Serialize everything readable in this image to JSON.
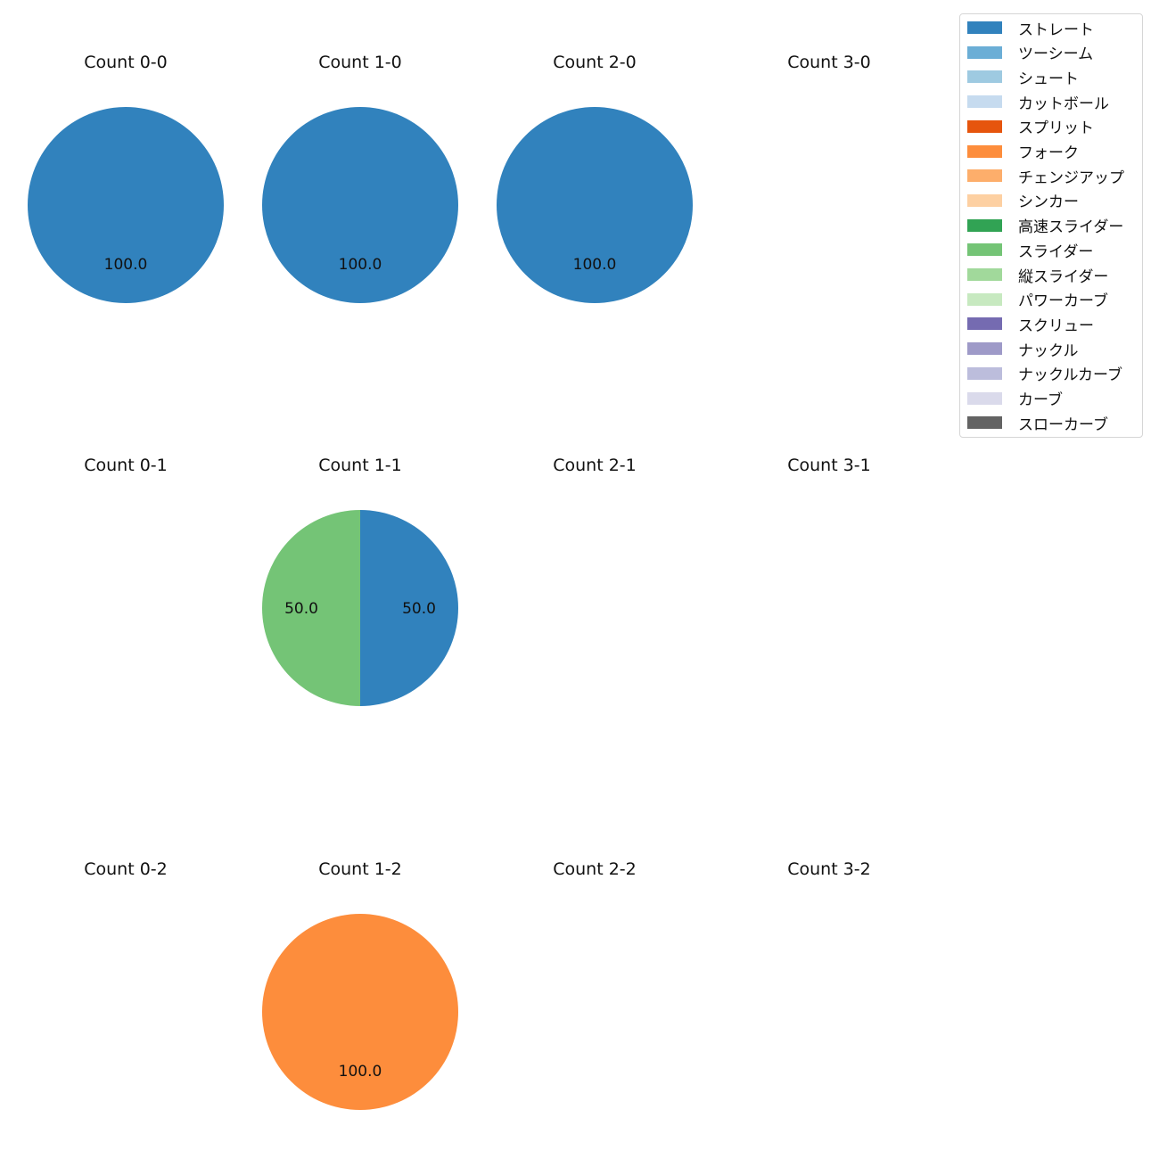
{
  "chart_data": {
    "type": "pie",
    "legend": {
      "placement": "top-right",
      "entries": [
        {
          "label": "ストレート",
          "color": "#3182bd"
        },
        {
          "label": "ツーシーム",
          "color": "#6baed6"
        },
        {
          "label": "シュート",
          "color": "#9ecae1"
        },
        {
          "label": "カットボール",
          "color": "#c6dbef"
        },
        {
          "label": "スプリット",
          "color": "#e6550d"
        },
        {
          "label": "フォーク",
          "color": "#fd8d3c"
        },
        {
          "label": "チェンジアップ",
          "color": "#fdae6b"
        },
        {
          "label": "シンカー",
          "color": "#fdd0a2"
        },
        {
          "label": "高速スライダー",
          "color": "#31a354"
        },
        {
          "label": "スライダー",
          "color": "#74c476"
        },
        {
          "label": "縦スライダー",
          "color": "#a1d99b"
        },
        {
          "label": "パワーカーブ",
          "color": "#c7e9c0"
        },
        {
          "label": "スクリュー",
          "color": "#756bb1"
        },
        {
          "label": "ナックル",
          "color": "#9e9ac8"
        },
        {
          "label": "ナックルカーブ",
          "color": "#bcbddc"
        },
        {
          "label": "カーブ",
          "color": "#dadaeb"
        },
        {
          "label": "スローカーブ",
          "color": "#636363"
        }
      ]
    },
    "subplots": [
      {
        "title": "Count 0-0",
        "slices": [
          {
            "pitch": "ストレート",
            "value": 100.0,
            "label": "100.0"
          }
        ]
      },
      {
        "title": "Count 1-0",
        "slices": [
          {
            "pitch": "ストレート",
            "value": 100.0,
            "label": "100.0"
          }
        ]
      },
      {
        "title": "Count 2-0",
        "slices": [
          {
            "pitch": "ストレート",
            "value": 100.0,
            "label": "100.0"
          }
        ]
      },
      {
        "title": "Count 3-0",
        "slices": []
      },
      {
        "title": "Count 0-1",
        "slices": []
      },
      {
        "title": "Count 1-1",
        "slices": [
          {
            "pitch": "ストレート",
            "value": 50.0,
            "label": "50.0"
          },
          {
            "pitch": "スライダー",
            "value": 50.0,
            "label": "50.0"
          }
        ]
      },
      {
        "title": "Count 2-1",
        "slices": []
      },
      {
        "title": "Count 3-1",
        "slices": []
      },
      {
        "title": "Count 0-2",
        "slices": []
      },
      {
        "title": "Count 1-2",
        "slices": [
          {
            "pitch": "フォーク",
            "value": 100.0,
            "label": "100.0"
          }
        ]
      },
      {
        "title": "Count 2-2",
        "slices": []
      },
      {
        "title": "Count 3-2",
        "slices": []
      }
    ]
  }
}
